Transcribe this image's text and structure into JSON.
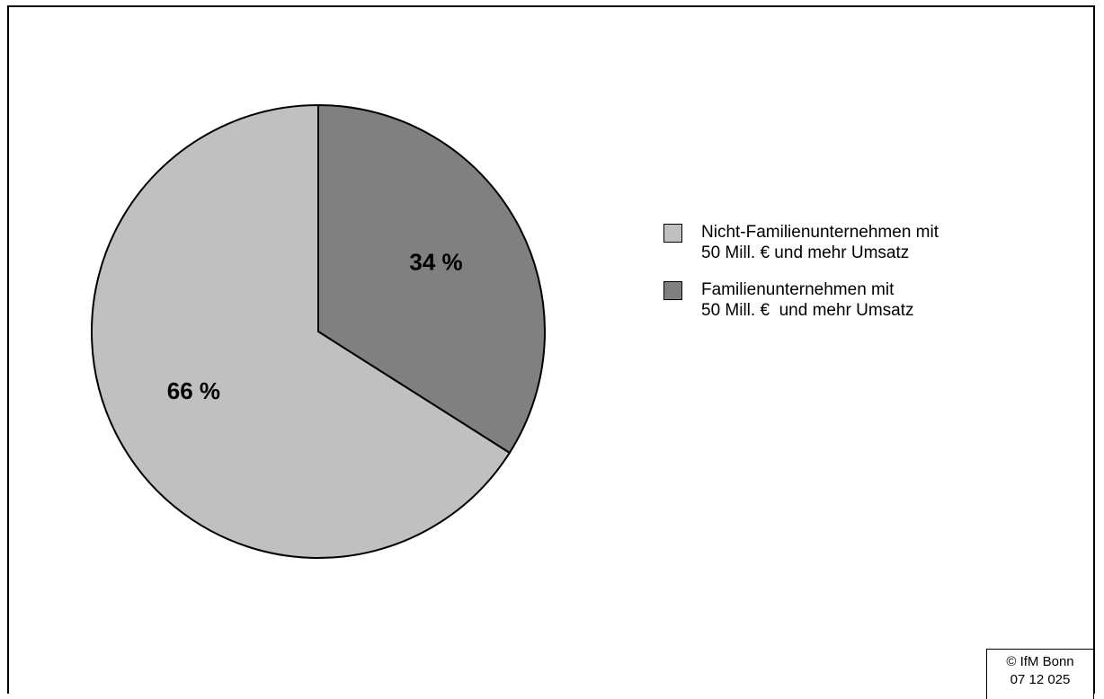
{
  "chart_data": {
    "type": "pie",
    "slices": [
      {
        "label_lines": [
          "Familienunternehmen mit",
          "50 Mill. €  und mehr Umsatz"
        ],
        "value": 34,
        "value_label": "34 %",
        "color": "#808080"
      },
      {
        "label_lines": [
          "Nicht-Familienunternehmen mit",
          "50 Mill. € und mehr Umsatz"
        ],
        "value": 66,
        "value_label": "66 %",
        "color": "#c0c0c0"
      }
    ],
    "legend_placement": "right",
    "legend_order": [
      1,
      0
    ]
  },
  "credit": {
    "line1": "© IfM Bonn",
    "line2": "07 12 025"
  }
}
